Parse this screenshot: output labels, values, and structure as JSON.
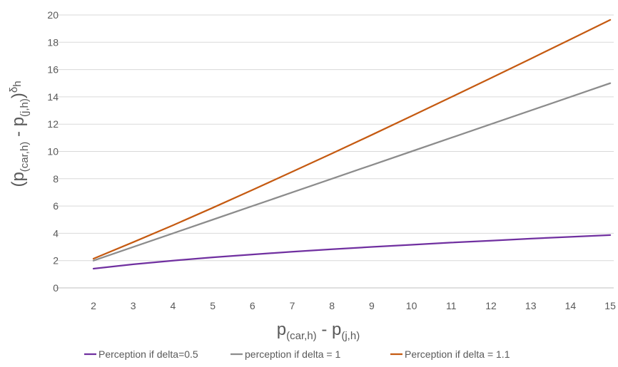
{
  "chart_data": {
    "type": "line",
    "x": [
      2,
      3,
      4,
      5,
      6,
      7,
      8,
      9,
      10,
      11,
      12,
      13,
      14,
      15
    ],
    "series": [
      {
        "name": "Perception if delta=0.5",
        "color": "#7030A0",
        "values": [
          1.41,
          1.73,
          2.0,
          2.24,
          2.45,
          2.65,
          2.83,
          3.0,
          3.16,
          3.32,
          3.46,
          3.61,
          3.74,
          3.87
        ]
      },
      {
        "name": "perception if delta = 1",
        "color": "#8C8C8C",
        "values": [
          2,
          3,
          4,
          5,
          6,
          7,
          8,
          9,
          10,
          11,
          12,
          13,
          14,
          15
        ]
      },
      {
        "name": "Perception if delta = 1.1",
        "color": "#C55A11",
        "values": [
          2.14,
          3.35,
          4.59,
          5.87,
          7.18,
          8.51,
          9.85,
          11.21,
          12.59,
          13.98,
          15.38,
          16.79,
          18.21,
          19.64
        ]
      }
    ],
    "ylim": [
      0,
      20
    ],
    "yticks": [
      0,
      2,
      4,
      6,
      8,
      10,
      12,
      14,
      16,
      18,
      20
    ],
    "xlabel": {
      "main": "p",
      "sub1": "(car,h)",
      "mid": " - p",
      "sub2": "(j,h)"
    },
    "ylabel": {
      "open": "(p",
      "sub1": "(car,h)",
      "mid": " - p",
      "sub2": "(j,h)",
      "close": ")",
      "sup": "δ",
      "supsub": "h"
    },
    "grid": true,
    "legend_position": "bottom"
  }
}
